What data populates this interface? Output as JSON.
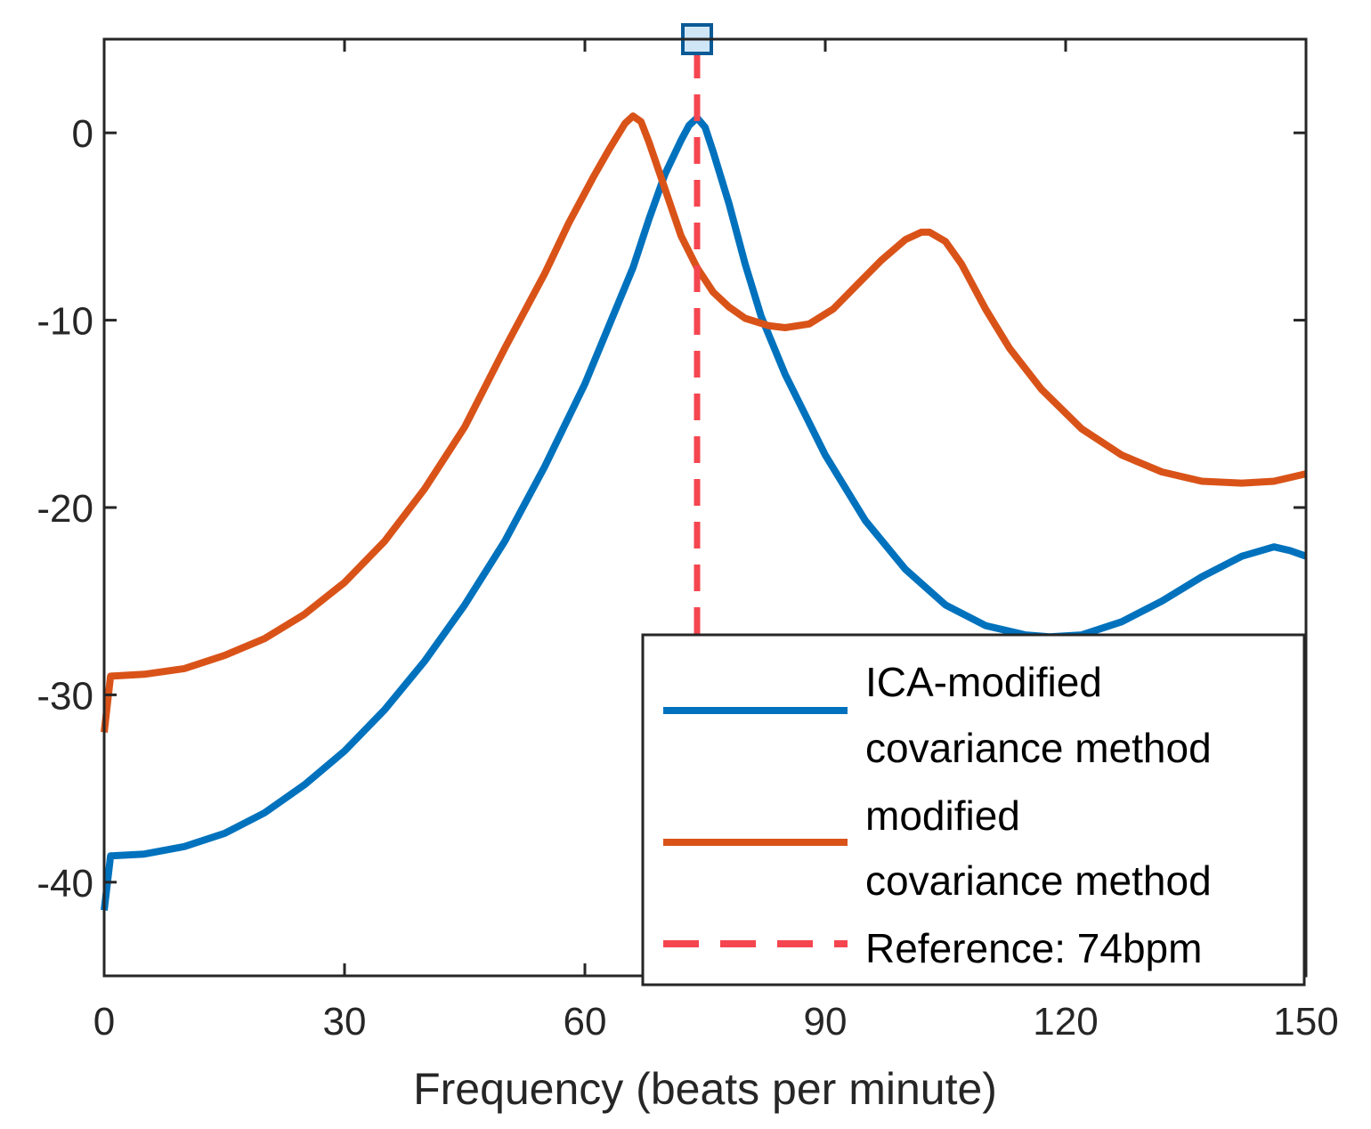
{
  "chart_data": {
    "type": "line",
    "xlabel": "Frequency (beats per minute)",
    "ylabel": "",
    "xlim": [
      0,
      150
    ],
    "ylim": [
      -45,
      5
    ],
    "xticks": [
      "0",
      "30",
      "60",
      "90",
      "120",
      "150"
    ],
    "yticks": [
      "0",
      "-10",
      "-20",
      "-30",
      "-40"
    ],
    "grid": false,
    "legend_position": "bottom-right",
    "series": [
      {
        "name_lines": [
          "ICA-modified",
          "covariance method"
        ],
        "color": "#0072BD",
        "style": "solid",
        "points": [
          [
            0,
            -41.5
          ],
          [
            0.8,
            -38.6
          ],
          [
            5,
            -38.5
          ],
          [
            10,
            -38.1
          ],
          [
            15,
            -37.4
          ],
          [
            20,
            -36.3
          ],
          [
            25,
            -34.8
          ],
          [
            30,
            -33
          ],
          [
            35,
            -30.8
          ],
          [
            40,
            -28.2
          ],
          [
            45,
            -25.2
          ],
          [
            50,
            -21.8
          ],
          [
            55,
            -17.8
          ],
          [
            60,
            -13.4
          ],
          [
            63,
            -10.3
          ],
          [
            66,
            -7.2
          ],
          [
            68,
            -4.6
          ],
          [
            70,
            -2.2
          ],
          [
            72,
            -0.4
          ],
          [
            73,
            0.4
          ],
          [
            74,
            0.8
          ],
          [
            75,
            0.3
          ],
          [
            76,
            -1
          ],
          [
            78,
            -3.8
          ],
          [
            80,
            -7
          ],
          [
            82,
            -9.8
          ],
          [
            85,
            -12.9
          ],
          [
            90,
            -17.2
          ],
          [
            95,
            -20.7
          ],
          [
            100,
            -23.3
          ],
          [
            105,
            -25.2
          ],
          [
            110,
            -26.3
          ],
          [
            115,
            -26.8
          ],
          [
            118,
            -26.9
          ],
          [
            122,
            -26.8
          ],
          [
            127,
            -26.1
          ],
          [
            132,
            -25
          ],
          [
            137,
            -23.7
          ],
          [
            142,
            -22.6
          ],
          [
            146,
            -22.1
          ],
          [
            148,
            -22.3
          ],
          [
            150,
            -22.6
          ]
        ]
      },
      {
        "name_lines": [
          "modified",
          "covariance method"
        ],
        "color": "#D95319",
        "style": "solid",
        "points": [
          [
            0,
            -32
          ],
          [
            0.8,
            -29
          ],
          [
            5,
            -28.9
          ],
          [
            10,
            -28.6
          ],
          [
            15,
            -27.9
          ],
          [
            20,
            -27
          ],
          [
            25,
            -25.7
          ],
          [
            30,
            -24
          ],
          [
            35,
            -21.8
          ],
          [
            40,
            -19
          ],
          [
            45,
            -15.7
          ],
          [
            50,
            -11.5
          ],
          [
            55,
            -7.5
          ],
          [
            58,
            -4.8
          ],
          [
            61,
            -2.4
          ],
          [
            63,
            -0.9
          ],
          [
            65,
            0.5
          ],
          [
            66,
            0.9
          ],
          [
            67,
            0.6
          ],
          [
            68,
            -0.5
          ],
          [
            70,
            -3
          ],
          [
            72,
            -5.5
          ],
          [
            74,
            -7.2
          ],
          [
            76,
            -8.5
          ],
          [
            78,
            -9.3
          ],
          [
            80,
            -9.9
          ],
          [
            83,
            -10.3
          ],
          [
            85,
            -10.4
          ],
          [
            88,
            -10.2
          ],
          [
            91,
            -9.4
          ],
          [
            94,
            -8.1
          ],
          [
            97,
            -6.8
          ],
          [
            100,
            -5.7
          ],
          [
            102,
            -5.3
          ],
          [
            103,
            -5.3
          ],
          [
            105,
            -5.8
          ],
          [
            107,
            -7
          ],
          [
            110,
            -9.4
          ],
          [
            113,
            -11.5
          ],
          [
            117,
            -13.7
          ],
          [
            122,
            -15.8
          ],
          [
            127,
            -17.2
          ],
          [
            132,
            -18.1
          ],
          [
            137,
            -18.6
          ],
          [
            142,
            -18.7
          ],
          [
            146,
            -18.6
          ],
          [
            150,
            -18.2
          ]
        ]
      },
      {
        "name_lines": [
          "Reference: 74bpm"
        ],
        "color": "#F54650",
        "style": "dashed",
        "x": 74,
        "y_range": [
          -45,
          5
        ],
        "marker_y": 5
      }
    ]
  }
}
